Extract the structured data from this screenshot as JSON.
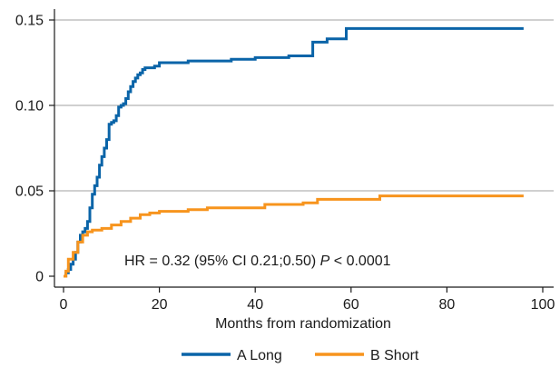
{
  "chart_data": {
    "type": "line",
    "step": true,
    "xlabel": "Months from randomization",
    "ylabel": "",
    "xlim": [
      0,
      100
    ],
    "ylim": [
      0,
      0.15
    ],
    "xticks": [
      0,
      20,
      40,
      60,
      80,
      100
    ],
    "xtick_labels": [
      "0",
      "20",
      "40",
      "60",
      "80",
      "100"
    ],
    "yticks": [
      0,
      0.05,
      0.1,
      0.15
    ],
    "ytick_labels": [
      "0",
      "0.05",
      "0.10",
      "0.15"
    ],
    "grid": "horizontal",
    "legend_position": "bottom",
    "annotation": {
      "prefix": "HR = 0.32 (95% CI 0.21;0.50) ",
      "pvalue_label": "P",
      "pvalue_text": " < 0.0001"
    },
    "series": [
      {
        "name": "A Long",
        "color": "#0a64a8",
        "x": [
          0,
          0.5,
          1,
          1.5,
          2,
          2.5,
          3,
          3.5,
          4,
          4.5,
          5,
          5.5,
          6,
          6.5,
          7,
          7.5,
          8,
          8.5,
          9,
          9.5,
          10,
          10.5,
          11,
          11.5,
          12,
          12.5,
          13,
          13.5,
          14,
          14.5,
          15,
          15.5,
          16,
          16.5,
          17,
          18,
          19,
          20,
          22,
          24,
          26,
          28,
          30,
          35,
          40,
          45,
          47,
          52,
          55,
          58,
          59,
          65,
          70,
          80,
          90,
          96
        ],
        "y": [
          0,
          0.002,
          0.004,
          0.007,
          0.01,
          0.014,
          0.02,
          0.024,
          0.026,
          0.028,
          0.032,
          0.04,
          0.048,
          0.053,
          0.058,
          0.065,
          0.07,
          0.075,
          0.08,
          0.089,
          0.09,
          0.091,
          0.094,
          0.099,
          0.1,
          0.101,
          0.104,
          0.108,
          0.111,
          0.114,
          0.116,
          0.118,
          0.119,
          0.121,
          0.122,
          0.122,
          0.123,
          0.125,
          0.125,
          0.125,
          0.126,
          0.126,
          0.126,
          0.127,
          0.128,
          0.128,
          0.129,
          0.137,
          0.139,
          0.139,
          0.145,
          0.145,
          0.145,
          0.145,
          0.145,
          0.145
        ]
      },
      {
        "name": "B Short",
        "color": "#f7941d",
        "x": [
          0,
          0.5,
          1,
          2,
          3,
          4,
          5,
          6,
          8,
          10,
          12,
          14,
          16,
          18,
          20,
          26,
          30,
          40,
          42,
          50,
          53,
          60,
          66,
          70,
          80,
          90,
          96
        ],
        "y": [
          0,
          0.003,
          0.01,
          0.014,
          0.02,
          0.024,
          0.026,
          0.027,
          0.028,
          0.03,
          0.032,
          0.034,
          0.036,
          0.037,
          0.038,
          0.039,
          0.04,
          0.04,
          0.042,
          0.043,
          0.045,
          0.045,
          0.047,
          0.047,
          0.047,
          0.047,
          0.047
        ]
      }
    ]
  }
}
